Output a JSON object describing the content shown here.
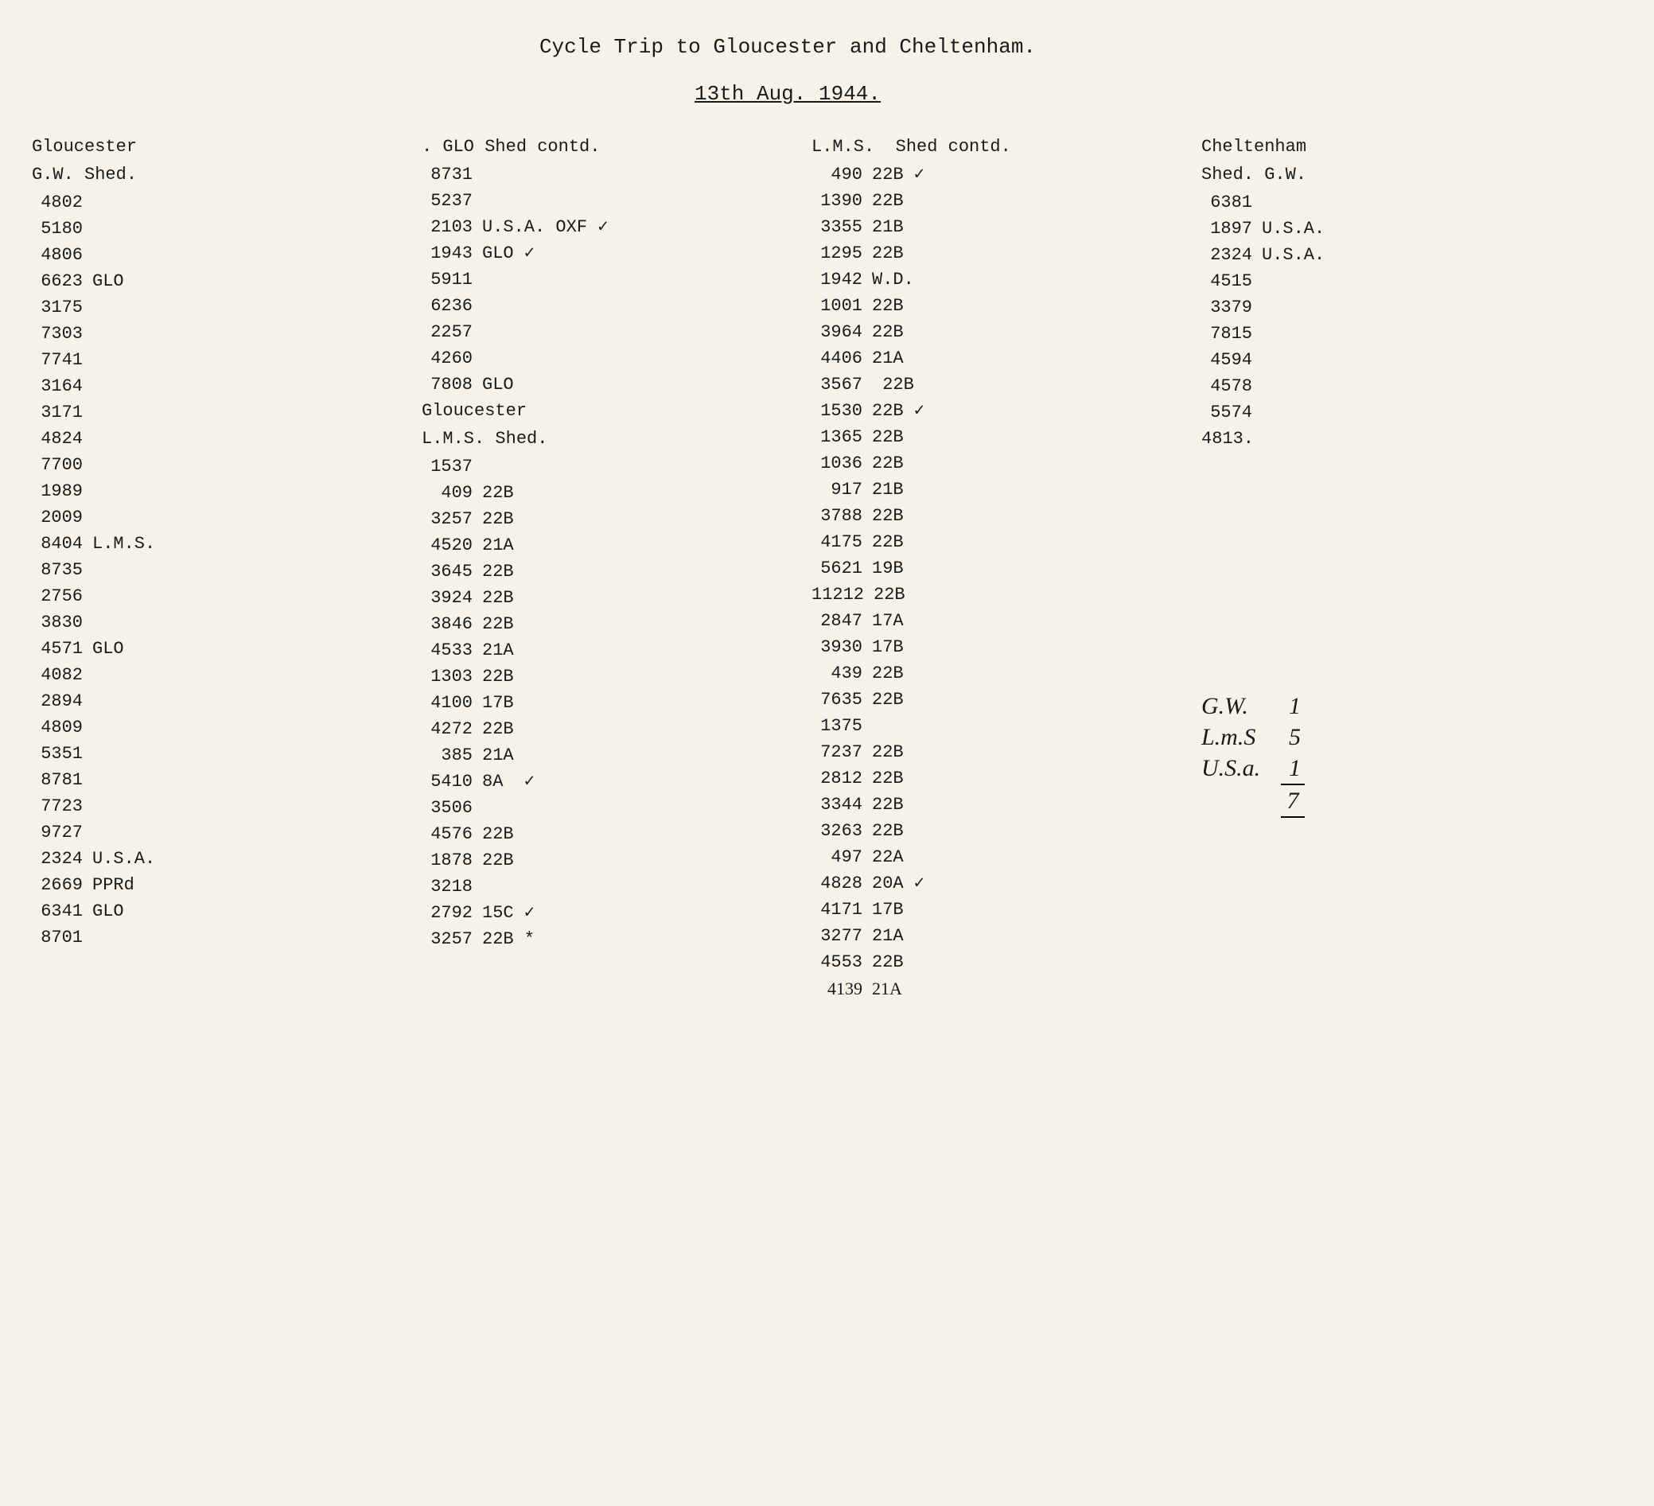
{
  "title": "Cycle Trip to Gloucester and Cheltenham.",
  "date": "13th Aug. 1944.",
  "columns": [
    {
      "headers": [
        "Gloucester",
        "G.W. Shed."
      ],
      "rows": [
        {
          "num": "4802",
          "note": ""
        },
        {
          "num": "5180",
          "note": ""
        },
        {
          "num": "4806",
          "note": ""
        },
        {
          "num": "6623",
          "note": "GLO"
        },
        {
          "num": "3175",
          "note": ""
        },
        {
          "num": "7303",
          "note": ""
        },
        {
          "num": "7741",
          "note": ""
        },
        {
          "num": "3164",
          "note": ""
        },
        {
          "num": "3171",
          "note": ""
        },
        {
          "num": "4824",
          "note": ""
        },
        {
          "num": "7700",
          "note": ""
        },
        {
          "num": "1989",
          "note": ""
        },
        {
          "num": "2009",
          "note": ""
        },
        {
          "num": "8404",
          "note": "L.M.S."
        },
        {
          "num": "8735",
          "note": ""
        },
        {
          "num": "2756",
          "note": ""
        },
        {
          "num": "3830",
          "note": ""
        },
        {
          "num": "4571",
          "note": "GLO"
        },
        {
          "num": "4082",
          "note": ""
        },
        {
          "num": "2894",
          "note": ""
        },
        {
          "num": "4809",
          "note": ""
        },
        {
          "num": "5351",
          "note": ""
        },
        {
          "num": "8781",
          "note": ""
        },
        {
          "num": "7723",
          "note": ""
        },
        {
          "num": "9727",
          "note": ""
        },
        {
          "num": "2324",
          "note": "U.S.A."
        },
        {
          "num": "2669",
          "note": "PPRd"
        },
        {
          "num": "6341",
          "note": "GLO"
        },
        {
          "num": "8701",
          "note": ""
        }
      ]
    },
    {
      "headers": [
        ". GLO Shed contd."
      ],
      "rows": [
        {
          "num": "8731",
          "note": ""
        },
        {
          "num": "5237",
          "note": ""
        },
        {
          "num": "2103",
          "note": "U.S.A. OXF ✓"
        },
        {
          "num": "1943",
          "note": "GLO ✓"
        },
        {
          "num": "5911",
          "note": ""
        },
        {
          "num": "6236",
          "note": ""
        },
        {
          "num": "2257",
          "note": ""
        },
        {
          "num": "4260",
          "note": ""
        },
        {
          "num": "7808",
          "note": "GLO"
        }
      ],
      "headers2": [
        "Gloucester",
        "L.M.S. Shed."
      ],
      "rows2": [
        {
          "num": "1537",
          "note": ""
        },
        {
          "num": "409",
          "note": "22B"
        },
        {
          "num": "3257",
          "note": "22B"
        },
        {
          "num": "4520",
          "note": "21A"
        },
        {
          "num": "3645",
          "note": "22B"
        },
        {
          "num": "3924",
          "note": "22B"
        },
        {
          "num": "3846",
          "note": "22B"
        },
        {
          "num": "4533",
          "note": "21A"
        },
        {
          "num": "1303",
          "note": "22B"
        },
        {
          "num": "4100",
          "note": "17B"
        },
        {
          "num": "4272",
          "note": "22B"
        },
        {
          "num": "385",
          "note": "21A"
        },
        {
          "num": "5410",
          "note": "8A  ✓"
        },
        {
          "num": "3506",
          "note": ""
        },
        {
          "num": "4576",
          "note": "22B"
        },
        {
          "num": "1878",
          "note": "22B"
        },
        {
          "num": "3218",
          "note": ""
        },
        {
          "num": "2792",
          "note": "15C ✓"
        },
        {
          "num": "3257",
          "note": "22B *"
        }
      ]
    },
    {
      "headers": [
        "L.M.S.  Shed contd."
      ],
      "rows": [
        {
          "num": "490",
          "note": "22B ✓"
        },
        {
          "num": "1390",
          "note": "22B"
        },
        {
          "num": "3355",
          "note": "21B"
        },
        {
          "num": "1295",
          "note": "22B"
        },
        {
          "num": "1942",
          "note": "W.D."
        },
        {
          "num": "1001",
          "note": "22B"
        },
        {
          "num": "3964",
          "note": "22B"
        },
        {
          "num": "4406",
          "note": "21A"
        },
        {
          "num": "3567",
          "note": " 22B"
        },
        {
          "num": "1530",
          "note": "22B ✓"
        },
        {
          "num": "1365",
          "note": "22B"
        },
        {
          "num": "1036",
          "note": "22B"
        },
        {
          "num": "917",
          "note": "21B"
        },
        {
          "num": "3788",
          "note": "22B"
        },
        {
          "num": "4175",
          "note": "22B"
        },
        {
          "num": "5621",
          "note": "19B"
        },
        {
          "num": "11212",
          "note": "22B"
        },
        {
          "num": "2847",
          "note": "17A"
        },
        {
          "num": "3930",
          "note": "17B"
        },
        {
          "num": "439",
          "note": "22B"
        },
        {
          "num": "7635",
          "note": "22B"
        },
        {
          "num": "1375",
          "note": ""
        },
        {
          "num": "7237",
          "note": "22B"
        },
        {
          "num": "2812",
          "note": "22B"
        },
        {
          "num": "3344",
          "note": "22B"
        },
        {
          "num": "3263",
          "note": "22B"
        },
        {
          "num": "497",
          "note": "22A"
        },
        {
          "num": "4828",
          "note": "20A ✓"
        },
        {
          "num": "4171",
          "note": "17B"
        },
        {
          "num": "3277",
          "note": "21A"
        },
        {
          "num": "4553",
          "note": "22B"
        },
        {
          "num": "4139",
          "note": "21A",
          "hand": true
        }
      ]
    },
    {
      "headers": [
        "Cheltenham",
        "Shed. G.W."
      ],
      "rows": [
        {
          "num": "6381",
          "note": ""
        },
        {
          "num": "1897",
          "note": "U.S.A."
        },
        {
          "num": "2324",
          "note": "U.S.A."
        },
        {
          "num": "4515",
          "note": ""
        },
        {
          "num": "3379",
          "note": ""
        },
        {
          "num": "7815",
          "note": ""
        },
        {
          "num": "4594",
          "note": ""
        },
        {
          "num": "4578",
          "note": ""
        },
        {
          "num": "5574",
          "note": ""
        },
        {
          "num": "4813.",
          "note": ""
        }
      ],
      "handwritten": [
        {
          "label": "G.W.",
          "val": "1"
        },
        {
          "label": "L.m.S",
          "val": "5"
        },
        {
          "label": "U.S.a.",
          "val": "1"
        }
      ],
      "total": "7"
    }
  ]
}
